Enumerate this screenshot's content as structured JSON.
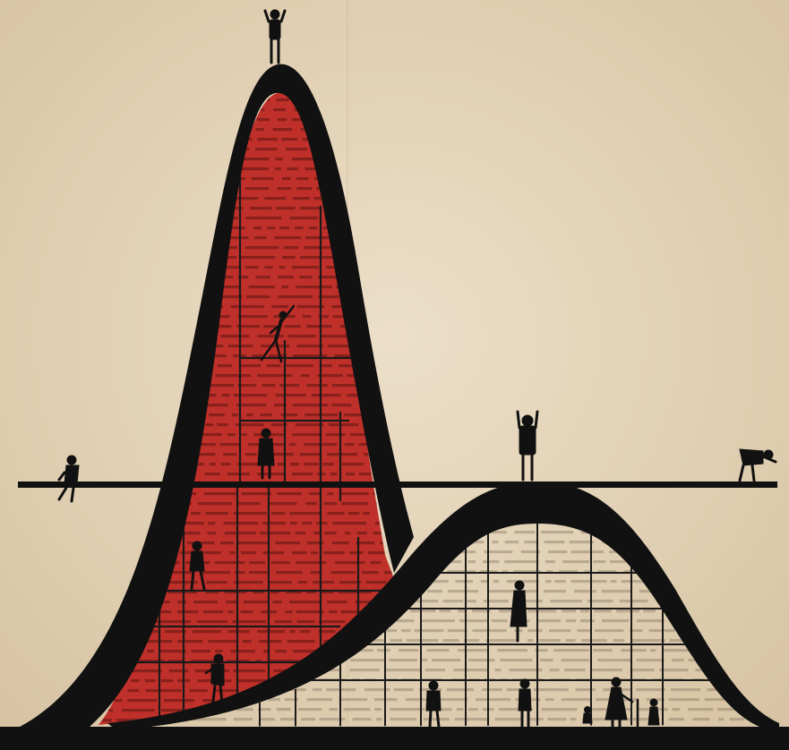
{
  "artwork": {
    "palette": {
      "paper": "#e6d6bd",
      "paper_shade": "#d9c6a8",
      "ink": "#111111",
      "red": "#c0302a",
      "text_on_red": "#5a1410",
      "text_on_paper": "#8a7a66"
    },
    "elements": {
      "tall_curve": "tall-bell-curve",
      "wide_curve": "wide-bell-curve",
      "horizon": "horizontal-line",
      "figures": "human-silhouettes",
      "printed_texture": "printed-text-texture"
    }
  }
}
